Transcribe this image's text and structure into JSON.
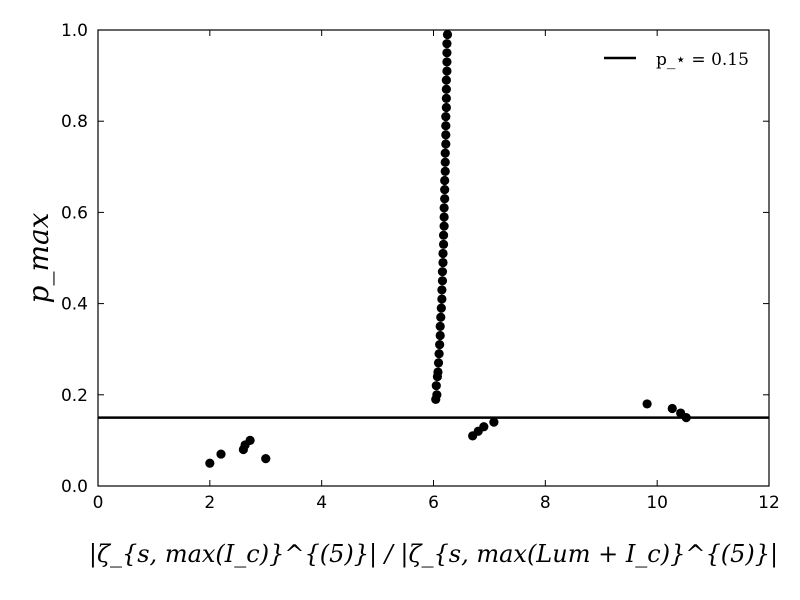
{
  "chart_data": {
    "type": "scatter",
    "title": "",
    "xlabel": "|ζ_{s, max(I_c)}^{(5)}| / |ζ_{s, max(Lum + I_c)}^{(5)}|",
    "ylabel": "p_max",
    "xlim": [
      0,
      12
    ],
    "ylim": [
      0.0,
      1.0
    ],
    "x_ticks": [
      "0",
      "2",
      "4",
      "6",
      "8",
      "10",
      "12"
    ],
    "y_ticks": [
      "0.0",
      "0.2",
      "0.4",
      "0.6",
      "0.8",
      "1.0"
    ],
    "grid": false,
    "legend": {
      "position": "top-right",
      "entries": [
        {
          "label": "p_⋆ = 0.15",
          "style": "line",
          "color": "#000000"
        }
      ]
    },
    "reference_line": {
      "y": 0.15,
      "label": "p_⋆ = 0.15",
      "color": "#000000"
    },
    "series": [
      {
        "marker": "circle",
        "color": "#000000",
        "points": [
          [
            2.0,
            0.05
          ],
          [
            2.2,
            0.07
          ],
          [
            2.6,
            0.08
          ],
          [
            2.63,
            0.09
          ],
          [
            2.72,
            0.1
          ],
          [
            3.0,
            0.06
          ],
          [
            6.7,
            0.11
          ],
          [
            6.8,
            0.12
          ],
          [
            6.9,
            0.13
          ],
          [
            7.08,
            0.14
          ],
          [
            9.82,
            0.18
          ],
          [
            10.27,
            0.17
          ],
          [
            10.42,
            0.16
          ],
          [
            10.52,
            0.15
          ],
          [
            6.04,
            0.19
          ],
          [
            6.06,
            0.2
          ],
          [
            6.05,
            0.22
          ],
          [
            6.07,
            0.24
          ],
          [
            6.08,
            0.25
          ],
          [
            6.09,
            0.27
          ],
          [
            6.1,
            0.29
          ],
          [
            6.11,
            0.31
          ],
          [
            6.12,
            0.33
          ],
          [
            6.12,
            0.35
          ],
          [
            6.13,
            0.37
          ],
          [
            6.14,
            0.39
          ],
          [
            6.15,
            0.41
          ],
          [
            6.15,
            0.43
          ],
          [
            6.16,
            0.45
          ],
          [
            6.16,
            0.47
          ],
          [
            6.17,
            0.49
          ],
          [
            6.17,
            0.51
          ],
          [
            6.18,
            0.53
          ],
          [
            6.18,
            0.55
          ],
          [
            6.19,
            0.57
          ],
          [
            6.19,
            0.59
          ],
          [
            6.19,
            0.61
          ],
          [
            6.2,
            0.63
          ],
          [
            6.2,
            0.65
          ],
          [
            6.2,
            0.67
          ],
          [
            6.21,
            0.69
          ],
          [
            6.21,
            0.71
          ],
          [
            6.21,
            0.73
          ],
          [
            6.22,
            0.75
          ],
          [
            6.22,
            0.77
          ],
          [
            6.22,
            0.79
          ],
          [
            6.22,
            0.81
          ],
          [
            6.23,
            0.83
          ],
          [
            6.23,
            0.85
          ],
          [
            6.23,
            0.87
          ],
          [
            6.23,
            0.89
          ],
          [
            6.24,
            0.91
          ],
          [
            6.24,
            0.93
          ],
          [
            6.24,
            0.95
          ],
          [
            6.24,
            0.97
          ],
          [
            6.25,
            0.99
          ]
        ]
      }
    ]
  }
}
